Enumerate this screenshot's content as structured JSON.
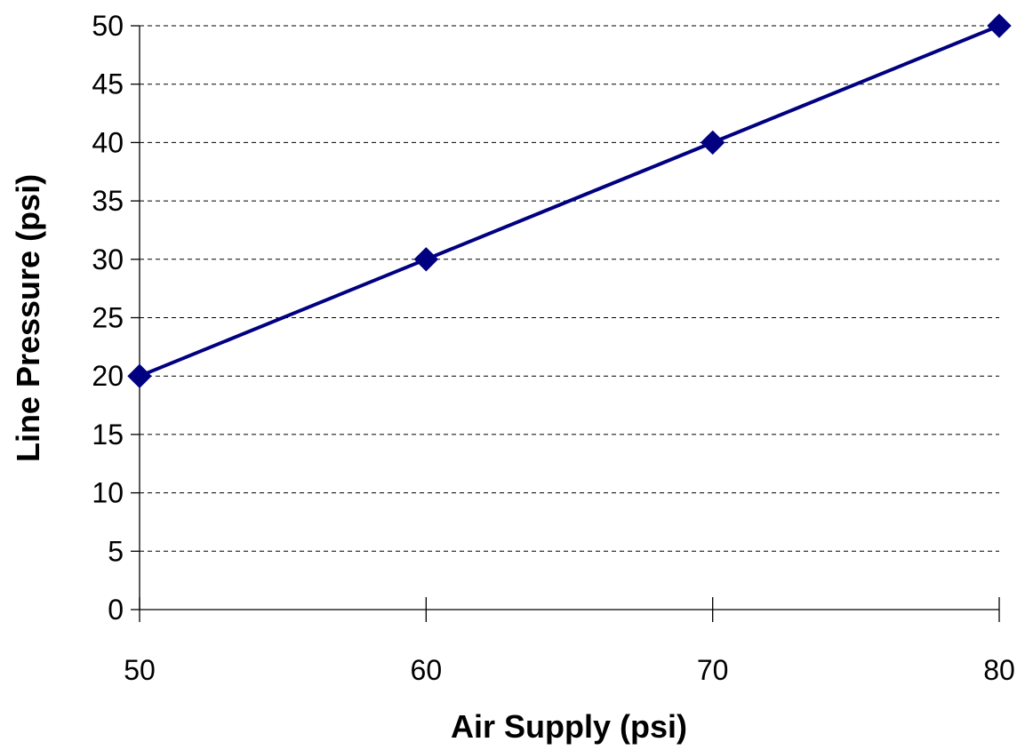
{
  "chart_data": {
    "type": "line",
    "title": "",
    "xlabel": "Air Supply (psi)",
    "ylabel": "Line Pressure (psi)",
    "xlim": [
      50,
      80
    ],
    "ylim": [
      0,
      50
    ],
    "x_ticks": [
      50,
      60,
      70,
      80
    ],
    "y_ticks": [
      0,
      5,
      10,
      15,
      20,
      25,
      30,
      35,
      40,
      45,
      50
    ],
    "grid": "horizontal-dashed",
    "legend": "none",
    "series": [
      {
        "color": "#000080",
        "marker": "diamond",
        "x": [
          50,
          60,
          70,
          80
        ],
        "y": [
          20,
          30,
          40,
          50
        ]
      }
    ]
  }
}
